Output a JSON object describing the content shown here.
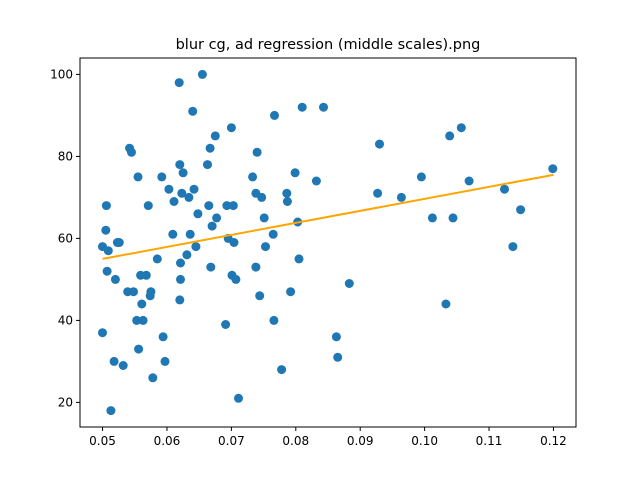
{
  "chart_data": {
    "type": "scatter",
    "title": "blur cg, ad regression (middle scales).png",
    "xlabel": "",
    "ylabel": "",
    "xlim": [
      0.0465,
      0.1235
    ],
    "ylim": [
      14,
      104
    ],
    "xticks": [
      0.05,
      0.06,
      0.07,
      0.08,
      0.09,
      0.1,
      0.11,
      0.12
    ],
    "xtick_labels": [
      "0.05",
      "0.06",
      "0.07",
      "0.08",
      "0.09",
      "0.10",
      "0.11",
      "0.12"
    ],
    "yticks": [
      20,
      40,
      60,
      80,
      100
    ],
    "ytick_labels": [
      "20",
      "40",
      "60",
      "80",
      "100"
    ],
    "grid": false,
    "point_color": "#1f77b4",
    "line_color": "#ffa500",
    "regression_line": {
      "x": [
        0.05,
        0.12
      ],
      "y": [
        55.0,
        75.5
      ]
    },
    "points": [
      {
        "x": 0.05,
        "y": 58
      },
      {
        "x": 0.05,
        "y": 37
      },
      {
        "x": 0.0505,
        "y": 62
      },
      {
        "x": 0.0506,
        "y": 68
      },
      {
        "x": 0.0507,
        "y": 52
      },
      {
        "x": 0.0509,
        "y": 57
      },
      {
        "x": 0.0513,
        "y": 18
      },
      {
        "x": 0.0518,
        "y": 30
      },
      {
        "x": 0.052,
        "y": 50
      },
      {
        "x": 0.0523,
        "y": 59
      },
      {
        "x": 0.0526,
        "y": 59
      },
      {
        "x": 0.0532,
        "y": 29
      },
      {
        "x": 0.0539,
        "y": 47
      },
      {
        "x": 0.0542,
        "y": 82
      },
      {
        "x": 0.0545,
        "y": 81
      },
      {
        "x": 0.0548,
        "y": 47
      },
      {
        "x": 0.0553,
        "y": 40
      },
      {
        "x": 0.0555,
        "y": 75
      },
      {
        "x": 0.0556,
        "y": 33
      },
      {
        "x": 0.0559,
        "y": 51
      },
      {
        "x": 0.0561,
        "y": 44
      },
      {
        "x": 0.0563,
        "y": 40
      },
      {
        "x": 0.0568,
        "y": 51
      },
      {
        "x": 0.0571,
        "y": 68
      },
      {
        "x": 0.0574,
        "y": 46
      },
      {
        "x": 0.0575,
        "y": 47
      },
      {
        "x": 0.0578,
        "y": 26
      },
      {
        "x": 0.0585,
        "y": 55
      },
      {
        "x": 0.0592,
        "y": 75
      },
      {
        "x": 0.0594,
        "y": 36
      },
      {
        "x": 0.0597,
        "y": 30
      },
      {
        "x": 0.0603,
        "y": 72
      },
      {
        "x": 0.0609,
        "y": 61
      },
      {
        "x": 0.0611,
        "y": 69
      },
      {
        "x": 0.0619,
        "y": 98
      },
      {
        "x": 0.062,
        "y": 78
      },
      {
        "x": 0.062,
        "y": 45
      },
      {
        "x": 0.0621,
        "y": 54
      },
      {
        "x": 0.0621,
        "y": 50
      },
      {
        "x": 0.0623,
        "y": 71
      },
      {
        "x": 0.0625,
        "y": 76
      },
      {
        "x": 0.0631,
        "y": 56
      },
      {
        "x": 0.0634,
        "y": 70
      },
      {
        "x": 0.0636,
        "y": 61
      },
      {
        "x": 0.064,
        "y": 91
      },
      {
        "x": 0.0642,
        "y": 72
      },
      {
        "x": 0.0645,
        "y": 58
      },
      {
        "x": 0.0648,
        "y": 66
      },
      {
        "x": 0.0655,
        "y": 100
      },
      {
        "x": 0.0663,
        "y": 78
      },
      {
        "x": 0.0665,
        "y": 68
      },
      {
        "x": 0.0667,
        "y": 82
      },
      {
        "x": 0.0668,
        "y": 53
      },
      {
        "x": 0.067,
        "y": 63
      },
      {
        "x": 0.0675,
        "y": 85
      },
      {
        "x": 0.0677,
        "y": 65
      },
      {
        "x": 0.0691,
        "y": 39
      },
      {
        "x": 0.0693,
        "y": 68
      },
      {
        "x": 0.0695,
        "y": 60
      },
      {
        "x": 0.07,
        "y": 87
      },
      {
        "x": 0.0701,
        "y": 51
      },
      {
        "x": 0.0703,
        "y": 68
      },
      {
        "x": 0.0704,
        "y": 59
      },
      {
        "x": 0.0707,
        "y": 50
      },
      {
        "x": 0.0711,
        "y": 21
      },
      {
        "x": 0.0733,
        "y": 75
      },
      {
        "x": 0.0738,
        "y": 53
      },
      {
        "x": 0.0738,
        "y": 71
      },
      {
        "x": 0.074,
        "y": 81
      },
      {
        "x": 0.0744,
        "y": 46
      },
      {
        "x": 0.0747,
        "y": 70
      },
      {
        "x": 0.0751,
        "y": 65
      },
      {
        "x": 0.0753,
        "y": 58
      },
      {
        "x": 0.0765,
        "y": 61
      },
      {
        "x": 0.0766,
        "y": 40
      },
      {
        "x": 0.0767,
        "y": 90
      },
      {
        "x": 0.0778,
        "y": 28
      },
      {
        "x": 0.0786,
        "y": 71
      },
      {
        "x": 0.0787,
        "y": 69
      },
      {
        "x": 0.0792,
        "y": 47
      },
      {
        "x": 0.0799,
        "y": 76
      },
      {
        "x": 0.0803,
        "y": 64
      },
      {
        "x": 0.0805,
        "y": 55
      },
      {
        "x": 0.081,
        "y": 92
      },
      {
        "x": 0.0832,
        "y": 74
      },
      {
        "x": 0.0843,
        "y": 92
      },
      {
        "x": 0.0863,
        "y": 36
      },
      {
        "x": 0.0865,
        "y": 31
      },
      {
        "x": 0.0883,
        "y": 49
      },
      {
        "x": 0.0927,
        "y": 71
      },
      {
        "x": 0.093,
        "y": 83
      },
      {
        "x": 0.0964,
        "y": 70
      },
      {
        "x": 0.0995,
        "y": 75
      },
      {
        "x": 0.1012,
        "y": 65
      },
      {
        "x": 0.1033,
        "y": 44
      },
      {
        "x": 0.1039,
        "y": 85
      },
      {
        "x": 0.1044,
        "y": 65
      },
      {
        "x": 0.1057,
        "y": 87
      },
      {
        "x": 0.1069,
        "y": 74
      },
      {
        "x": 0.1124,
        "y": 72
      },
      {
        "x": 0.1137,
        "y": 58
      },
      {
        "x": 0.1149,
        "y": 67
      },
      {
        "x": 0.1199,
        "y": 77
      }
    ]
  }
}
